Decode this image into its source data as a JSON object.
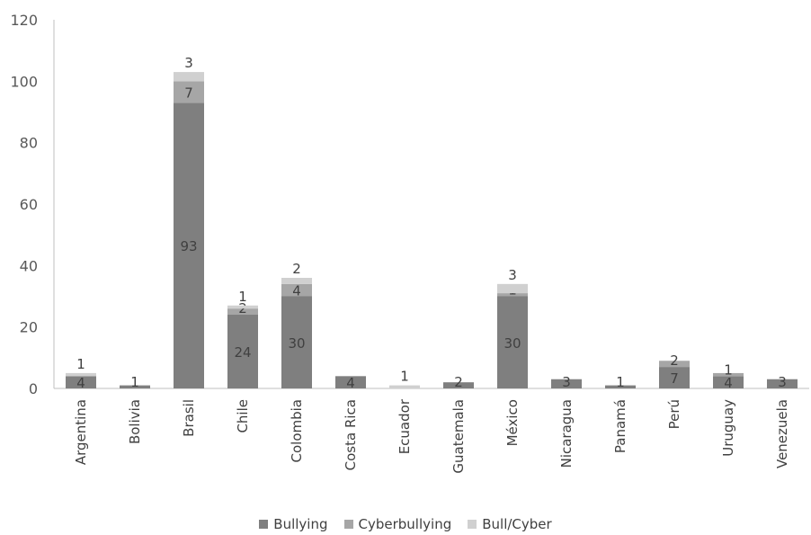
{
  "chart_data": {
    "type": "bar",
    "stacked": true,
    "categories": [
      "Argentina",
      "Bolivia",
      "Brasil",
      "Chile",
      "Colombia",
      "Costa Rica",
      "Ecuador",
      "Guatemala",
      "México",
      "Nicaragua",
      "Panamá",
      "Perú",
      "Uruguay",
      "Venezuela"
    ],
    "series": [
      {
        "name": "Bullying",
        "color": "#7f7f7f",
        "values": [
          4,
          1,
          93,
          24,
          30,
          4,
          0,
          2,
          30,
          3,
          1,
          7,
          4,
          3
        ]
      },
      {
        "name": "Cyberbullying",
        "color": "#a6a6a6",
        "values": [
          0,
          0,
          7,
          2,
          4,
          0,
          0,
          0,
          1,
          0,
          0,
          2,
          1,
          0
        ]
      },
      {
        "name": "Bull/Cyber",
        "color": "#d0d0d0",
        "values": [
          1,
          0,
          3,
          1,
          2,
          0,
          1,
          0,
          3,
          0,
          0,
          0,
          0,
          0
        ]
      }
    ],
    "data_labels": [
      {
        "category": "Argentina",
        "series": "Bullying",
        "text": "4"
      },
      {
        "category": "Argentina",
        "series": "Bull/Cyber",
        "text": "1"
      },
      {
        "category": "Bolivia",
        "series": "Bullying",
        "text": "1"
      },
      {
        "category": "Brasil",
        "series": "Bullying",
        "text": "93"
      },
      {
        "category": "Brasil",
        "series": "Cyberbullying",
        "text": "7"
      },
      {
        "category": "Brasil",
        "series": "Bull/Cyber",
        "text": "3"
      },
      {
        "category": "Chile",
        "series": "Bullying",
        "text": "24"
      },
      {
        "category": "Chile",
        "series": "Cyberbullying",
        "text": "2"
      },
      {
        "category": "Chile",
        "series": "Bull/Cyber",
        "text": "1"
      },
      {
        "category": "Colombia",
        "series": "Bullying",
        "text": "30"
      },
      {
        "category": "Colombia",
        "series": "Cyberbullying",
        "text": "4"
      },
      {
        "category": "Colombia",
        "series": "Bull/Cyber",
        "text": "2"
      },
      {
        "category": "Costa Rica",
        "series": "Bullying",
        "text": "4"
      },
      {
        "category": "Ecuador",
        "series": "Bull/Cyber",
        "text": "1"
      },
      {
        "category": "Guatemala",
        "series": "Bullying",
        "text": "2"
      },
      {
        "category": "México",
        "series": "Bullying",
        "text": "30"
      },
      {
        "category": "México",
        "series": "Cyberbullying",
        "text": "1"
      },
      {
        "category": "México",
        "series": "Bull/Cyber",
        "text": "3"
      },
      {
        "category": "Nicaragua",
        "series": "Bullying",
        "text": "3"
      },
      {
        "category": "Panamá",
        "series": "Bullying",
        "text": "1"
      },
      {
        "category": "Perú",
        "series": "Bullying",
        "text": "7"
      },
      {
        "category": "Perú",
        "series": "Cyberbullying",
        "text": "2"
      },
      {
        "category": "Uruguay",
        "series": "Bullying",
        "text": "4"
      },
      {
        "category": "Uruguay",
        "series": "Cyberbullying",
        "text": "1"
      },
      {
        "category": "Venezuela",
        "series": "Bullying",
        "text": "3"
      }
    ],
    "ylim": [
      0,
      120
    ],
    "yticks": [
      0,
      20,
      40,
      60,
      80,
      100,
      120
    ],
    "title": "",
    "xlabel": "",
    "ylabel": "",
    "grid": false,
    "legend_position": "bottom"
  }
}
